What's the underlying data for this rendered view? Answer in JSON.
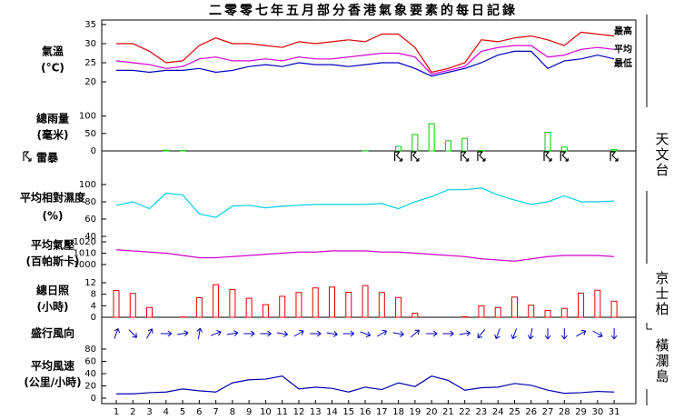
{
  "title": "二零零七年五月部分香港氣象要素的每日記錄",
  "stations": [
    "天文台",
    "京士柏",
    "橫瀾島"
  ],
  "chart_data": [
    {
      "type": "line",
      "label": "氣溫",
      "unit": "(°C)",
      "ylim": [
        20,
        35
      ],
      "yticks": [
        20,
        25,
        30,
        35
      ],
      "series": [
        {
          "name": "最高",
          "color": "#e00000",
          "values": [
            30,
            30,
            28,
            25,
            25.5,
            29.5,
            31.5,
            30,
            30,
            29.5,
            29,
            30.5,
            30,
            30.5,
            31,
            30.5,
            32.5,
            32.5,
            29,
            22.5,
            23.5,
            25,
            31,
            30.5,
            31.5,
            32,
            31,
            29.5,
            33,
            32.5,
            32
          ]
        },
        {
          "name": "平均",
          "color": "#d800d8",
          "values": [
            25.5,
            25,
            24.5,
            23.5,
            24,
            26,
            26.5,
            25.5,
            25.5,
            26,
            25.5,
            26.5,
            26,
            26,
            26.5,
            27,
            27.5,
            27.5,
            26.5,
            22,
            23,
            24,
            28,
            29,
            29.5,
            29.5,
            26.5,
            27,
            28.5,
            29,
            28.5
          ]
        },
        {
          "name": "最低",
          "color": "#0000c0",
          "values": [
            23,
            23,
            22.5,
            23,
            23,
            23.5,
            22.5,
            23,
            24,
            24.5,
            24,
            25,
            24.5,
            24.5,
            24,
            24.5,
            25,
            25,
            23.5,
            21.5,
            22.5,
            23.5,
            25,
            27,
            28,
            28,
            23.5,
            25.5,
            26,
            27,
            26
          ]
        }
      ]
    },
    {
      "type": "bar",
      "label": "總雨量",
      "unit": "(毫米)",
      "color": "#00cc00",
      "ylim": [
        0,
        125
      ],
      "yticks": [
        0,
        50,
        100
      ],
      "values": [
        0,
        0,
        0,
        2,
        1,
        0,
        0,
        0,
        0,
        0,
        0,
        0,
        0,
        0,
        0,
        0.5,
        0,
        13,
        47,
        78,
        29,
        36,
        1,
        0,
        0,
        0,
        53,
        11,
        0,
        0,
        4
      ]
    },
    {
      "type": "event",
      "label": "雷暴",
      "color": "#000000",
      "x": [
        18,
        19,
        22,
        23,
        27,
        28,
        31
      ]
    },
    {
      "type": "line",
      "label": "平均相對濕度",
      "unit": "(%)",
      "ylim": [
        40,
        100
      ],
      "yticks": [
        40,
        60,
        80,
        100
      ],
      "series": [
        {
          "color": "#00d0e8",
          "values": [
            76,
            80,
            72,
            90,
            88,
            66,
            62,
            75,
            76,
            73,
            75,
            76,
            77,
            77,
            77,
            77,
            78,
            72,
            80,
            86,
            94,
            94,
            96,
            88,
            82,
            77,
            80,
            87,
            80,
            80,
            81
          ]
        }
      ]
    },
    {
      "type": "line",
      "label": "平均氣壓",
      "unit": "(百帕斯卡)",
      "ylim": [
        1000,
        1020
      ],
      "yticks": [
        1000,
        1010,
        1020
      ],
      "series": [
        {
          "color": "#d000d0",
          "values": [
            1013,
            1012,
            1011,
            1010,
            1008,
            1006,
            1006,
            1007,
            1008,
            1009,
            1010,
            1011,
            1011,
            1012,
            1012,
            1012,
            1011,
            1011,
            1010,
            1009,
            1008,
            1007,
            1005,
            1004,
            1003,
            1005,
            1007,
            1008,
            1008,
            1008,
            1007
          ]
        }
      ]
    },
    {
      "type": "bar",
      "label": "總日照",
      "unit": "(小時)",
      "color": "#e00000",
      "ylim": [
        0,
        12
      ],
      "yticks": [
        0,
        4,
        8,
        12
      ],
      "values": [
        9.3,
        8.3,
        3.4,
        0,
        0.1,
        6.8,
        11.3,
        9.6,
        6.6,
        4.4,
        7.3,
        8.6,
        10.2,
        10.5,
        8.7,
        11,
        8.6,
        6.9,
        1.4,
        0,
        0,
        0.2,
        4,
        3.4,
        7,
        4.2,
        2.4,
        3.1,
        8.4,
        9.4,
        5.6
      ]
    },
    {
      "type": "direction",
      "label": "盛行風向",
      "color": "#0000c0",
      "values": [
        20,
        135,
        30,
        90,
        80,
        10,
        70,
        80,
        90,
        90,
        100,
        60,
        90,
        100,
        90,
        110,
        60,
        100,
        50,
        90,
        90,
        80,
        220,
        200,
        200,
        190,
        180,
        180,
        60,
        120,
        180
      ]
    },
    {
      "type": "line",
      "label": "平均風速",
      "unit": "(公里/小時)",
      "ylim": [
        0,
        80
      ],
      "yticks": [
        0,
        20,
        40,
        60,
        80
      ],
      "categories": [
        "1",
        "2",
        "3",
        "4",
        "5",
        "6",
        "7",
        "8",
        "9",
        "10",
        "11",
        "12",
        "13",
        "14",
        "15",
        "16",
        "17",
        "18",
        "19",
        "20",
        "21",
        "22",
        "23",
        "24",
        "25",
        "26",
        "27",
        "28",
        "29",
        "30",
        "31"
      ],
      "series": [
        {
          "color": "#0000b0",
          "values": [
            7,
            7,
            9,
            10,
            15,
            12,
            10,
            25,
            30,
            31,
            36,
            15,
            18,
            16,
            10,
            18,
            14,
            25,
            19,
            36,
            29,
            13,
            17,
            18,
            24,
            21,
            13,
            8,
            9,
            11,
            10
          ]
        }
      ]
    }
  ]
}
